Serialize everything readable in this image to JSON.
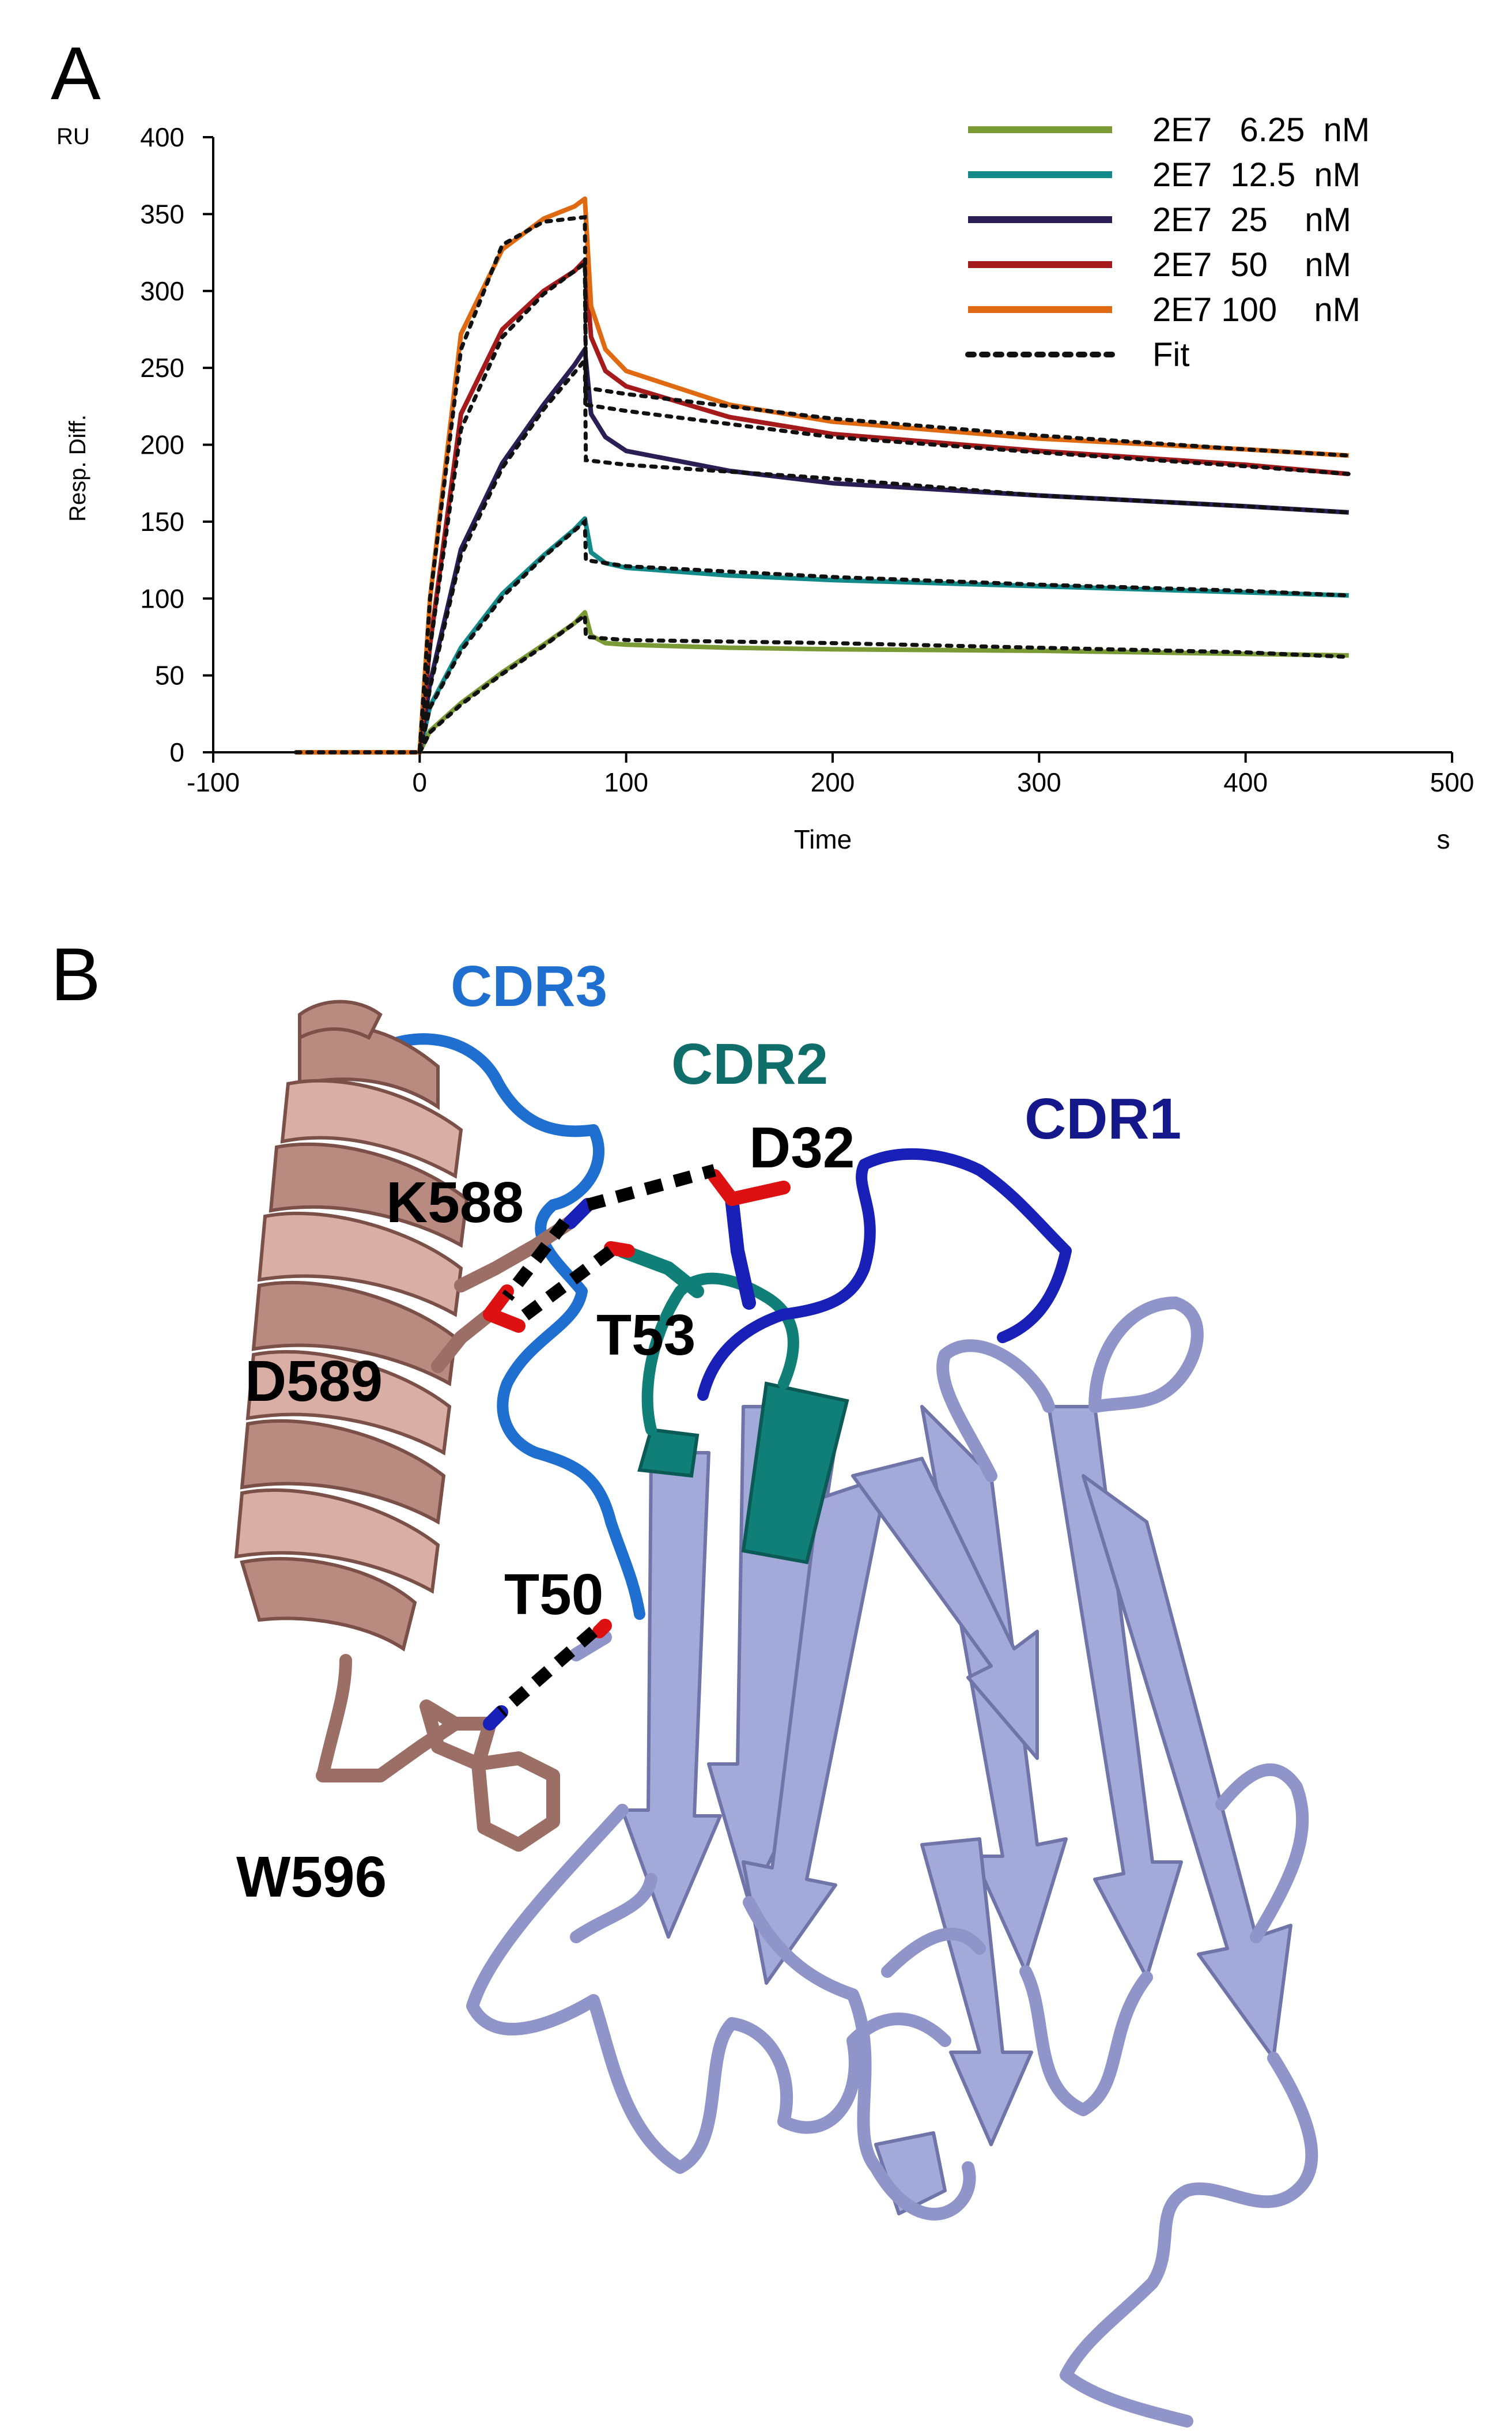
{
  "panels": {
    "a_label": "A",
    "b_label": "B"
  },
  "chart_data": {
    "type": "line",
    "xlabel": "Time",
    "x_unit": "s",
    "ylabel": "Resp. Diff.",
    "y_unit": "RU",
    "xlim": [
      -100,
      500
    ],
    "ylim": [
      0,
      400
    ],
    "xticks": [
      -100,
      0,
      100,
      200,
      300,
      400,
      500
    ],
    "yticks": [
      0,
      50,
      100,
      150,
      200,
      250,
      300,
      350,
      400
    ],
    "legend_position": "top-right",
    "series": [
      {
        "name": "2E7   6.25  nM",
        "color": "#7a9a35",
        "x": [
          -60,
          0,
          5,
          20,
          40,
          60,
          75,
          80,
          83,
          90,
          100,
          150,
          200,
          300,
          400,
          450
        ],
        "y": [
          0,
          0,
          14,
          32,
          52,
          70,
          84,
          91,
          76,
          71,
          70,
          68,
          67,
          66,
          64,
          63
        ]
      },
      {
        "name": "2E7  12.5  nM",
        "color": "#128a8a",
        "x": [
          -60,
          0,
          5,
          20,
          40,
          60,
          75,
          80,
          83,
          90,
          100,
          150,
          200,
          300,
          400,
          450
        ],
        "y": [
          0,
          0,
          30,
          68,
          103,
          128,
          145,
          152,
          130,
          123,
          120,
          115,
          112,
          108,
          104,
          102
        ]
      },
      {
        "name": "2E7  25    nM",
        "color": "#2a1e55",
        "x": [
          -60,
          0,
          5,
          20,
          40,
          60,
          75,
          80,
          83,
          90,
          100,
          150,
          200,
          300,
          400,
          450
        ],
        "y": [
          0,
          0,
          45,
          132,
          188,
          226,
          252,
          262,
          220,
          205,
          196,
          183,
          175,
          167,
          160,
          156
        ]
      },
      {
        "name": "2E7  50    nM",
        "color": "#a51b1b",
        "x": [
          -60,
          0,
          5,
          20,
          40,
          60,
          75,
          80,
          83,
          90,
          100,
          150,
          200,
          300,
          400,
          450
        ],
        "y": [
          0,
          0,
          70,
          220,
          275,
          300,
          313,
          320,
          270,
          248,
          238,
          218,
          207,
          196,
          187,
          181
        ]
      },
      {
        "name": "2E7 100    nM",
        "color": "#e06a12",
        "x": [
          -60,
          0,
          5,
          20,
          40,
          60,
          75,
          80,
          83,
          90,
          100,
          150,
          200,
          300,
          400,
          450
        ],
        "y": [
          0,
          0,
          100,
          272,
          327,
          347,
          355,
          360,
          290,
          262,
          248,
          226,
          215,
          204,
          197,
          193
        ]
      },
      {
        "name": "Fit",
        "color": "#111111",
        "dashed": true,
        "x": [
          -60,
          0,
          5,
          20,
          40,
          60,
          80,
          80.5,
          100,
          200,
          300,
          400,
          450
        ],
        "y": [
          0,
          0,
          100,
          262,
          330,
          345,
          348,
          237,
          233,
          217,
          206,
          197,
          193
        ]
      }
    ],
    "extra_fit_curves": [
      {
        "x": [
          0,
          5,
          20,
          40,
          60,
          80,
          80.5,
          100,
          200,
          300,
          400,
          450
        ],
        "y": [
          0,
          68,
          210,
          270,
          298,
          318,
          226,
          222,
          205,
          195,
          186,
          181
        ]
      },
      {
        "x": [
          0,
          5,
          20,
          40,
          60,
          80,
          80.5,
          100,
          200,
          300,
          400,
          450
        ],
        "y": [
          0,
          42,
          128,
          185,
          223,
          255,
          190,
          187,
          178,
          167,
          160,
          156
        ]
      },
      {
        "x": [
          0,
          5,
          20,
          40,
          60,
          80,
          80.5,
          100,
          200,
          300,
          400,
          450
        ],
        "y": [
          0,
          29,
          66,
          101,
          127,
          150,
          125,
          121,
          114,
          109,
          105,
          102
        ]
      },
      {
        "x": [
          0,
          5,
          20,
          40,
          60,
          80,
          80.5,
          100,
          200,
          300,
          400,
          450
        ],
        "y": [
          0,
          13,
          31,
          51,
          69,
          89,
          75,
          73,
          71,
          68,
          65,
          62
        ]
      }
    ]
  },
  "structure": {
    "cdr_labels": [
      {
        "text": "CDR3",
        "color": "#1f6fd1"
      },
      {
        "text": "CDR2",
        "color": "#0f6e6a"
      },
      {
        "text": "CDR1",
        "color": "#15188a"
      }
    ],
    "residue_labels": [
      "D32",
      "K588",
      "T53",
      "D589",
      "T50",
      "W596"
    ],
    "colors": {
      "helix": "#b98a80",
      "sheet": "#a3a9d9",
      "cdr3": "#1f6fd1",
      "cdr2": "#0f7f78",
      "cdr1": "#1820b8",
      "hbond": "#000000"
    }
  }
}
